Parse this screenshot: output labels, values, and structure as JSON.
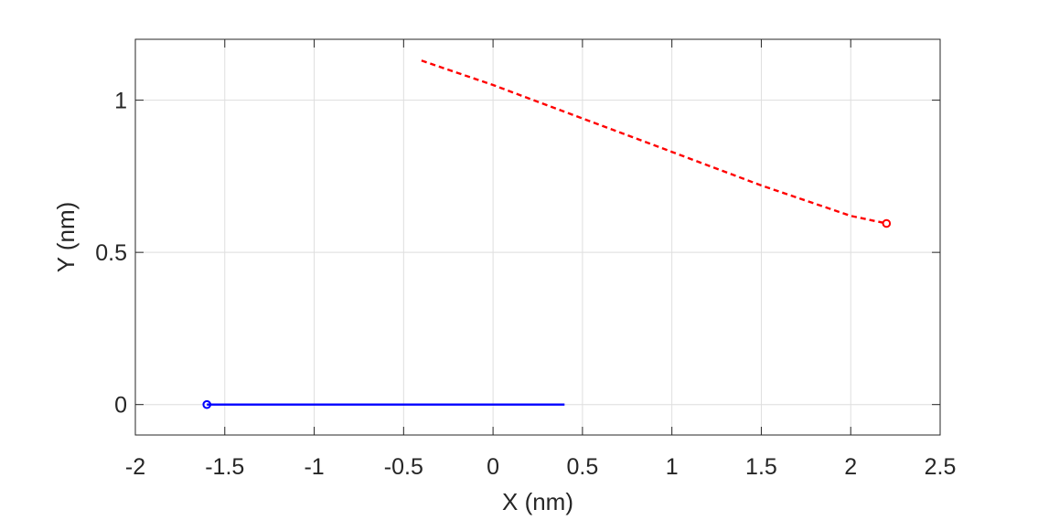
{
  "chart_data": {
    "type": "line",
    "title": "",
    "xlabel": "X (nm)",
    "ylabel": "Y (nm)",
    "xlim": [
      -2,
      2.5
    ],
    "ylim": [
      -0.1,
      1.2
    ],
    "xticks": [
      -2,
      -1.5,
      -1,
      -0.5,
      0,
      0.5,
      1,
      1.5,
      2,
      2.5
    ],
    "xtick_labels": [
      "-2",
      "-1.5",
      "-1",
      "-0.5",
      "0",
      "0.5",
      "1",
      "1.5",
      "2",
      "2.5"
    ],
    "yticks": [
      0,
      0.5,
      1
    ],
    "ytick_labels": [
      "0",
      "0.5",
      "1"
    ],
    "grid": true,
    "series": [
      {
        "color": "#0000ff",
        "line_style": "solid",
        "x": [
          -1.6,
          0.4
        ],
        "y": [
          0,
          0
        ],
        "marker": {
          "shape": "circle",
          "x": -1.6,
          "y": 0
        }
      },
      {
        "color": "#ff0000",
        "line_style": "dashed",
        "x": [
          -0.4,
          0.0,
          0.5,
          1.0,
          1.5,
          2.0,
          2.2
        ],
        "y": [
          1.13,
          1.05,
          0.94,
          0.83,
          0.72,
          0.62,
          0.595
        ],
        "marker": {
          "shape": "circle",
          "x": 2.2,
          "y": 0.595
        }
      }
    ]
  }
}
